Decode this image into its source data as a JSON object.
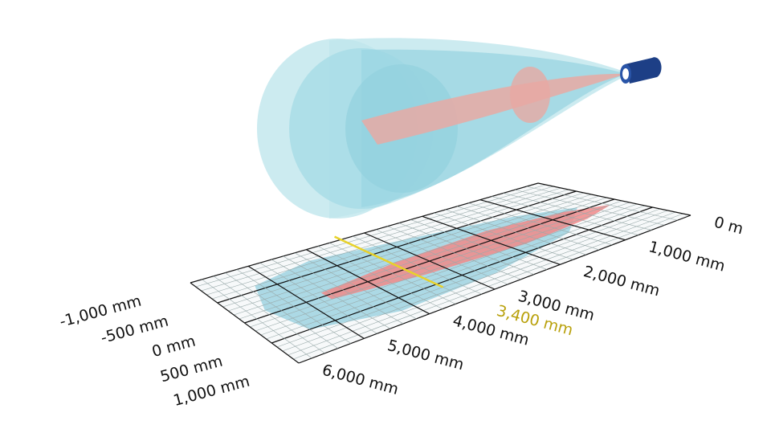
{
  "depth_labels": [
    "0 m",
    "1,000 mm",
    "2,000 mm",
    "3,000 mm",
    "4,000 mm",
    "5,000 mm",
    "6,000 mm"
  ],
  "width_labels": [
    "-1,000 mm",
    "-500 mm",
    "0 mm",
    "500 mm",
    "1,000 mm"
  ],
  "marker_label": "3,400 mm"
}
